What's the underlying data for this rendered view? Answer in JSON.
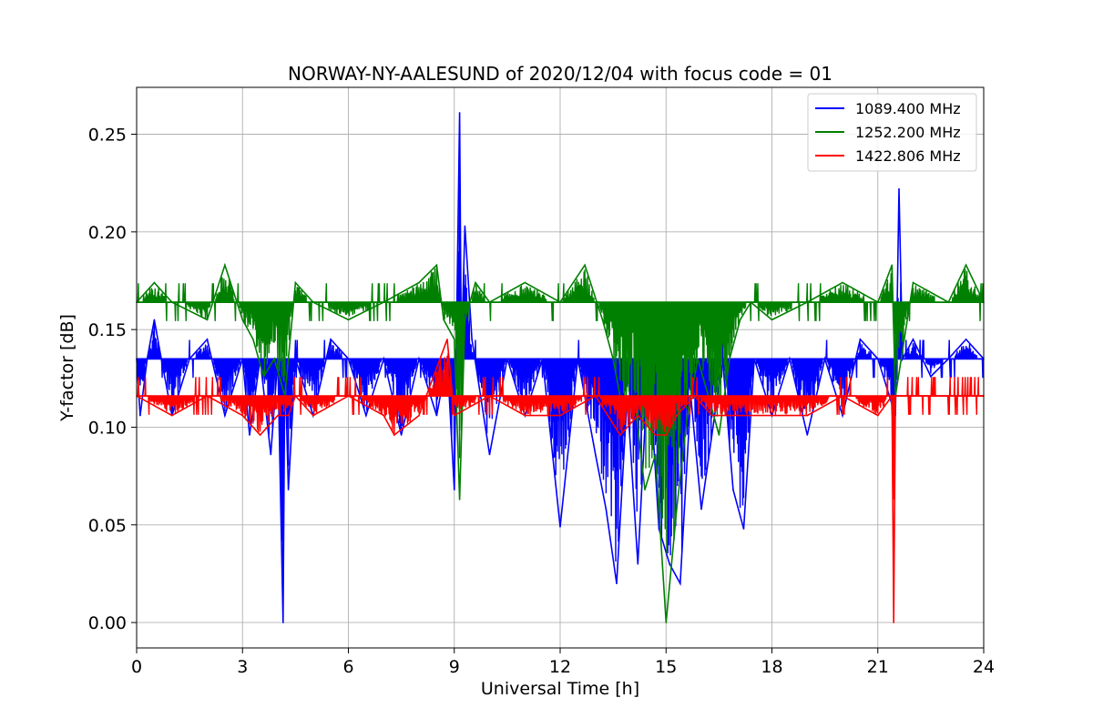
{
  "chart_data": {
    "type": "line",
    "title": "NORWAY-NY-AALESUND of 2020/12/04 with focus code = 01",
    "xlabel": "Universal Time [h]",
    "ylabel": "Y-factor [dB]",
    "xlim": [
      0,
      24
    ],
    "ylim": [
      -0.013,
      0.274
    ],
    "xticks": [
      0,
      3,
      6,
      9,
      12,
      15,
      18,
      21,
      24
    ],
    "xtick_labels": [
      "0",
      "3",
      "6",
      "9",
      "12",
      "15",
      "18",
      "21",
      "24"
    ],
    "yticks": [
      0.0,
      0.05,
      0.1,
      0.15,
      0.2,
      0.25
    ],
    "ytick_labels": [
      "0.00",
      "0.05",
      "0.10",
      "0.15",
      "0.20",
      "0.25"
    ],
    "grid": true,
    "legend_position": "top-right",
    "series": [
      {
        "name": "1089.400 MHz",
        "color": "#0000ff",
        "baseline": 0.135,
        "x": [
          0.0,
          0.1,
          0.3,
          0.5,
          0.7,
          1.0,
          1.5,
          2.0,
          2.5,
          3.0,
          3.2,
          3.5,
          3.8,
          4.0,
          4.15,
          4.2,
          4.3,
          4.5,
          5.0,
          5.5,
          6.0,
          6.5,
          7.0,
          7.5,
          8.0,
          8.5,
          8.8,
          9.0,
          9.15,
          9.2,
          9.3,
          9.5,
          10.0,
          10.5,
          11.0,
          11.5,
          12.0,
          12.5,
          13.0,
          13.3,
          13.6,
          13.9,
          14.2,
          14.5,
          14.8,
          15.1,
          15.4,
          15.7,
          16.0,
          16.3,
          16.6,
          16.9,
          17.2,
          17.5,
          18.0,
          18.5,
          19.0,
          19.5,
          20.0,
          20.5,
          21.0,
          21.5,
          21.6,
          21.7,
          22.0,
          22.5,
          23.0,
          23.5,
          24.0
        ],
        "y": [
          0.135,
          0.106,
          0.135,
          0.155,
          0.135,
          0.106,
          0.135,
          0.145,
          0.106,
          0.135,
          0.096,
          0.135,
          0.086,
          0.135,
          0.0,
          0.135,
          0.068,
          0.135,
          0.106,
          0.145,
          0.135,
          0.106,
          0.135,
          0.096,
          0.135,
          0.106,
          0.135,
          0.068,
          0.261,
          0.135,
          0.203,
          0.145,
          0.086,
          0.135,
          0.106,
          0.135,
          0.049,
          0.135,
          0.086,
          0.058,
          0.02,
          0.116,
          0.03,
          0.135,
          0.048,
          0.03,
          0.02,
          0.116,
          0.058,
          0.096,
          0.135,
          0.068,
          0.048,
          0.135,
          0.106,
          0.135,
          0.096,
          0.135,
          0.106,
          0.145,
          0.135,
          0.106,
          0.222,
          0.135,
          0.145,
          0.126,
          0.135,
          0.145,
          0.135
        ]
      },
      {
        "name": "1252.200 MHz",
        "color": "#008000",
        "baseline": 0.164,
        "x": [
          0.0,
          0.5,
          1.0,
          2.0,
          2.5,
          3.0,
          3.3,
          3.6,
          3.9,
          4.2,
          4.5,
          5.0,
          6.0,
          7.0,
          8.0,
          8.5,
          8.7,
          9.0,
          9.15,
          9.3,
          9.6,
          10.0,
          11.0,
          12.0,
          12.7,
          13.2,
          13.5,
          13.8,
          14.1,
          14.4,
          14.7,
          15.0,
          15.3,
          15.6,
          15.9,
          16.2,
          16.5,
          16.8,
          17.1,
          17.4,
          18.0,
          19.0,
          20.0,
          21.0,
          21.4,
          21.5,
          22.0,
          23.0,
          23.5,
          24.0
        ],
        "y": [
          0.164,
          0.174,
          0.164,
          0.155,
          0.183,
          0.155,
          0.145,
          0.126,
          0.135,
          0.116,
          0.174,
          0.164,
          0.155,
          0.164,
          0.174,
          0.183,
          0.155,
          0.145,
          0.063,
          0.155,
          0.174,
          0.164,
          0.174,
          0.164,
          0.183,
          0.155,
          0.135,
          0.106,
          0.116,
          0.068,
          0.086,
          0.0,
          0.058,
          0.106,
          0.135,
          0.116,
          0.096,
          0.135,
          0.155,
          0.164,
          0.155,
          0.164,
          0.174,
          0.164,
          0.183,
          0.116,
          0.174,
          0.164,
          0.183,
          0.164
        ]
      },
      {
        "name": "1422.806 MHz",
        "color": "#ff0000",
        "baseline": 0.116,
        "x": [
          0.0,
          1.0,
          2.0,
          3.0,
          3.5,
          4.0,
          4.3,
          4.5,
          5.0,
          6.0,
          7.0,
          7.3,
          8.0,
          8.8,
          9.0,
          10.0,
          11.0,
          12.0,
          13.0,
          13.7,
          14.2,
          14.7,
          15.0,
          15.3,
          15.8,
          16.3,
          17.0,
          18.0,
          19.0,
          20.0,
          21.0,
          21.4,
          21.45,
          21.5,
          22.0,
          24.0
        ],
        "y": [
          0.116,
          0.106,
          0.116,
          0.106,
          0.096,
          0.106,
          0.106,
          0.116,
          0.106,
          0.116,
          0.106,
          0.096,
          0.106,
          0.145,
          0.106,
          0.116,
          0.106,
          0.106,
          0.116,
          0.096,
          0.106,
          0.096,
          0.096,
          0.106,
          0.116,
          0.106,
          0.106,
          0.106,
          0.106,
          0.116,
          0.106,
          0.116,
          0.0,
          0.116,
          0.116,
          0.116
        ]
      }
    ]
  }
}
